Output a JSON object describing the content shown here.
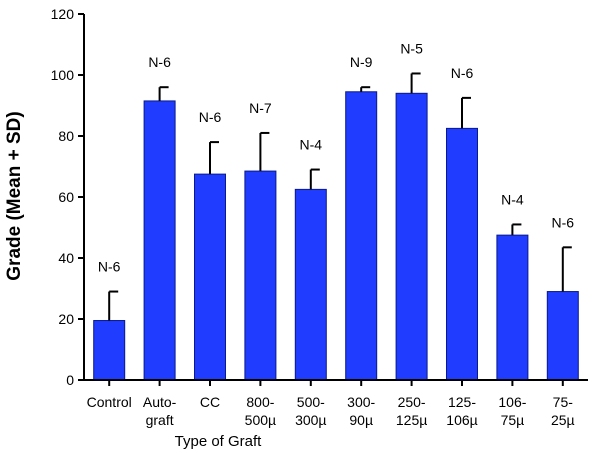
{
  "chart_data": {
    "type": "bar",
    "xlabel": "Type of Graft",
    "ylabel": "Grade (Mean + SD)",
    "ylim": [
      0,
      120
    ],
    "yticks": [
      0,
      20,
      40,
      60,
      80,
      100,
      120
    ],
    "grid": false,
    "categories": [
      [
        "Control"
      ],
      [
        "Auto-",
        "graft"
      ],
      [
        "CC"
      ],
      [
        "800-",
        "500µ"
      ],
      [
        "500-",
        "300µ"
      ],
      [
        "300-",
        "90µ"
      ],
      [
        "250-",
        "125µ"
      ],
      [
        "125-",
        "106µ"
      ],
      [
        "106-",
        "75µ"
      ],
      [
        "75-",
        "25µ"
      ]
    ],
    "values": [
      19.5,
      91.5,
      67.5,
      68.5,
      62.5,
      94.5,
      94,
      82.5,
      47.5,
      29
    ],
    "error": [
      9.5,
      4.5,
      10.5,
      12.5,
      6.5,
      1.5,
      6.5,
      10,
      3.5,
      14.5
    ],
    "n_labels": [
      "N-6",
      "N-6",
      "N-6",
      "N-7",
      "N-4",
      "N-9",
      "N-5",
      "N-6",
      "N-4",
      "N-6"
    ],
    "colors": {
      "bar": "#1f3cff",
      "bar_edge": "#0a1a8c",
      "axis": "#000000"
    }
  }
}
